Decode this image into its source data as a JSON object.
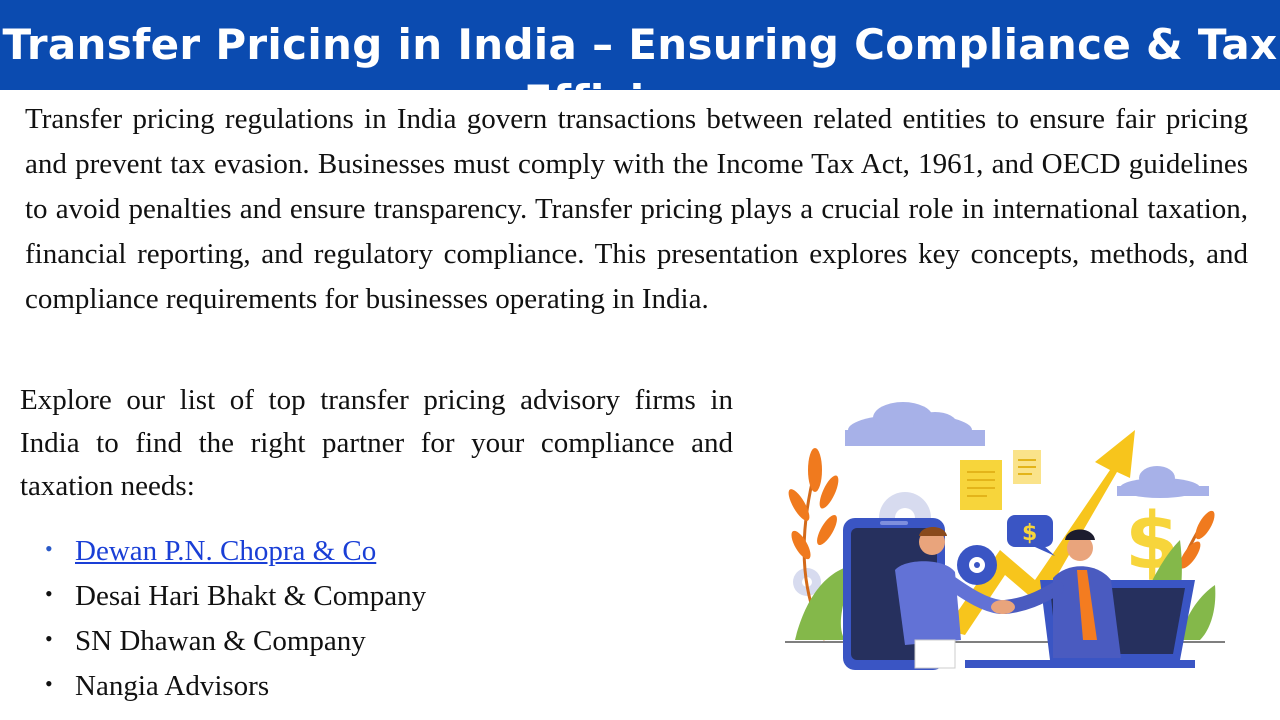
{
  "title": "Transfer Pricing in India – Ensuring Compliance & Tax Efficiency",
  "intro": "Transfer pricing regulations in India govern transactions between related entities to ensure fair pricing and prevent tax evasion. Businesses must comply with the Income Tax Act, 1961, and OECD guidelines to avoid penalties and ensure transparency. Transfer pricing plays a crucial role in international taxation, financial reporting, and regulatory compliance. This presentation explores key concepts, methods, and compliance requirements for businesses operating in India.",
  "explore": "Explore our list of top transfer pricing advisory firms in India to find the right partner for your compliance and taxation needs:",
  "firms": [
    {
      "label": "Dewan P.N. Chopra & Co",
      "bullet": "•"
    },
    {
      "label": "Desai Hari Bhakt & Company",
      "bullet": "•"
    },
    {
      "label": "SN Dhawan & Company",
      "bullet": "•"
    },
    {
      "label": "Nangia Advisors",
      "bullet": "•"
    }
  ],
  "illustration": {
    "icon": "business-handshake-growth-illustration",
    "colors": {
      "cloud": "#a7b1e8",
      "arrow": "#f7c51c",
      "phone": "#3a55c4",
      "leaf_orange": "#f07a1e",
      "leaf_green": "#84b84a",
      "man_shirt": "#f47c20",
      "chat_blue": "#3a55c4"
    }
  },
  "colors": {
    "title_bar": "#0b4bb0",
    "title_text": "#ffffff",
    "link": "#1a3fd6"
  }
}
